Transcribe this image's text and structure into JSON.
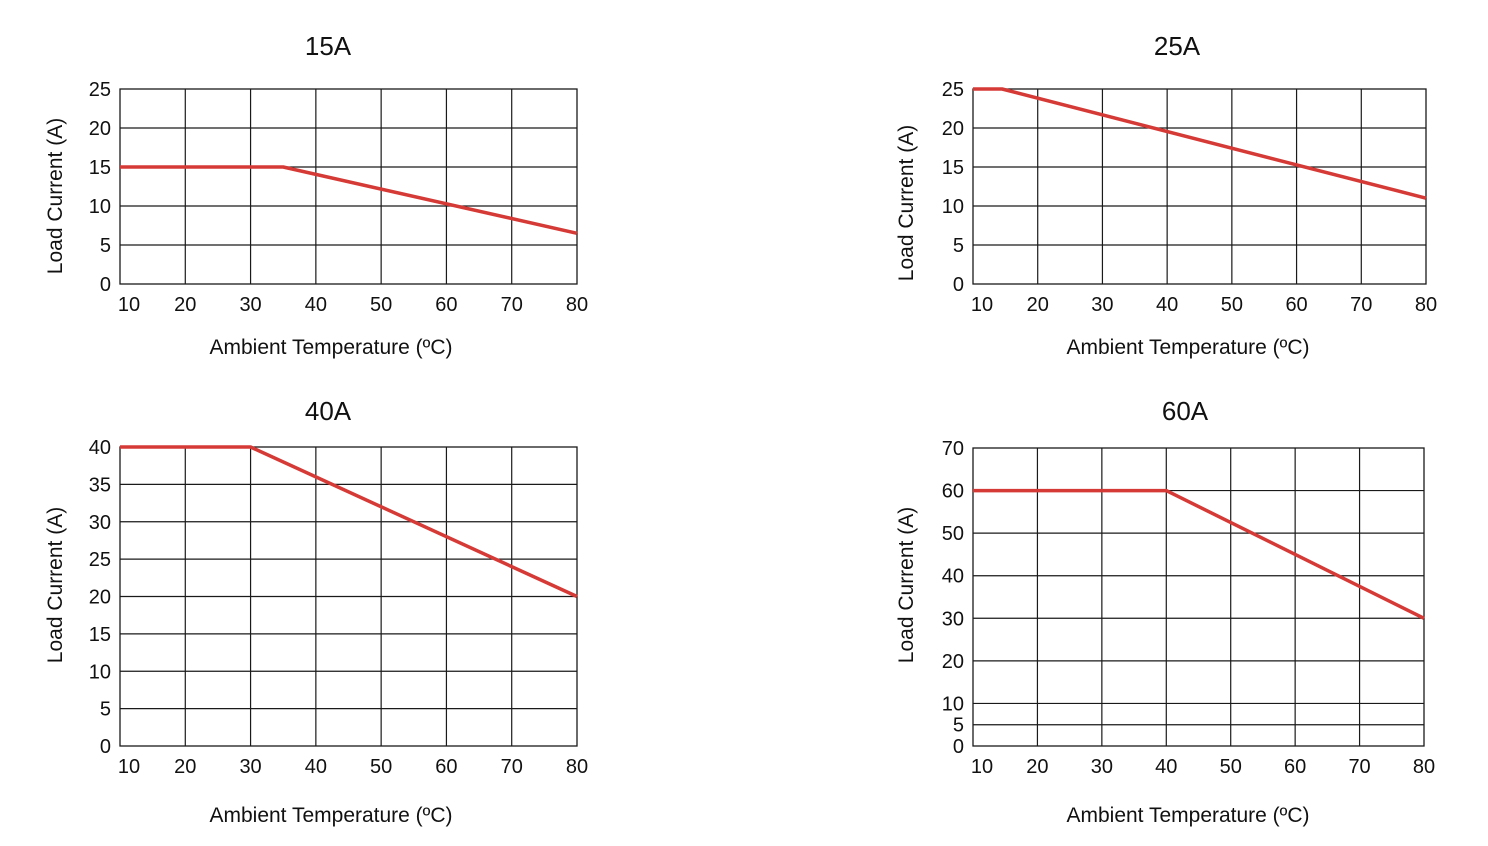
{
  "colors": {
    "series": "#d63a36",
    "grid": "#1a1a1a",
    "text": "#111111",
    "background": "#ffffff"
  },
  "chart_data": [
    {
      "type": "line",
      "title": "15A",
      "xlabel": "Ambient Temperature (ºC)",
      "ylabel": "Load Current (A)",
      "xlim": [
        10,
        80
      ],
      "ylim": [
        0,
        25
      ],
      "xticks": [
        10,
        20,
        30,
        40,
        50,
        60,
        70,
        80
      ],
      "yticks": [
        0,
        5,
        10,
        15,
        20,
        25
      ],
      "grid": true,
      "series": [
        {
          "x": [
            10,
            35,
            80
          ],
          "y": [
            15,
            15,
            6.5
          ]
        }
      ]
    },
    {
      "type": "line",
      "title": "25A",
      "xlabel": "Ambient Temperature (ºC)",
      "ylabel": "Load Current (A)",
      "xlim": [
        10,
        80
      ],
      "ylim": [
        0,
        25
      ],
      "xticks": [
        10,
        20,
        30,
        40,
        50,
        60,
        70,
        80
      ],
      "yticks": [
        0,
        5,
        10,
        15,
        20,
        25
      ],
      "grid": true,
      "series": [
        {
          "x": [
            10,
            14.5,
            80
          ],
          "y": [
            25,
            25,
            11
          ]
        }
      ]
    },
    {
      "type": "line",
      "title": "40A",
      "xlabel": "Ambient Temperature (ºC)",
      "ylabel": "Load Current (A)",
      "xlim": [
        10,
        80
      ],
      "ylim": [
        0,
        40
      ],
      "xticks": [
        10,
        20,
        30,
        40,
        50,
        60,
        70,
        80
      ],
      "yticks": [
        0,
        5,
        10,
        15,
        20,
        25,
        30,
        35,
        40
      ],
      "grid": true,
      "series": [
        {
          "x": [
            10,
            30,
            80
          ],
          "y": [
            40,
            40,
            20
          ]
        }
      ]
    },
    {
      "type": "line",
      "title": "60A",
      "xlabel": "Ambient Temperature (ºC)",
      "ylabel": "Load Current (A)",
      "xlim": [
        10,
        80
      ],
      "ylim": [
        0,
        70
      ],
      "xticks": [
        10,
        20,
        30,
        40,
        50,
        60,
        70,
        80
      ],
      "yticks": [
        0,
        5,
        10,
        20,
        30,
        40,
        50,
        60,
        70
      ],
      "grid": true,
      "series": [
        {
          "x": [
            10,
            40,
            80
          ],
          "y": [
            60,
            60,
            30
          ]
        }
      ]
    }
  ]
}
